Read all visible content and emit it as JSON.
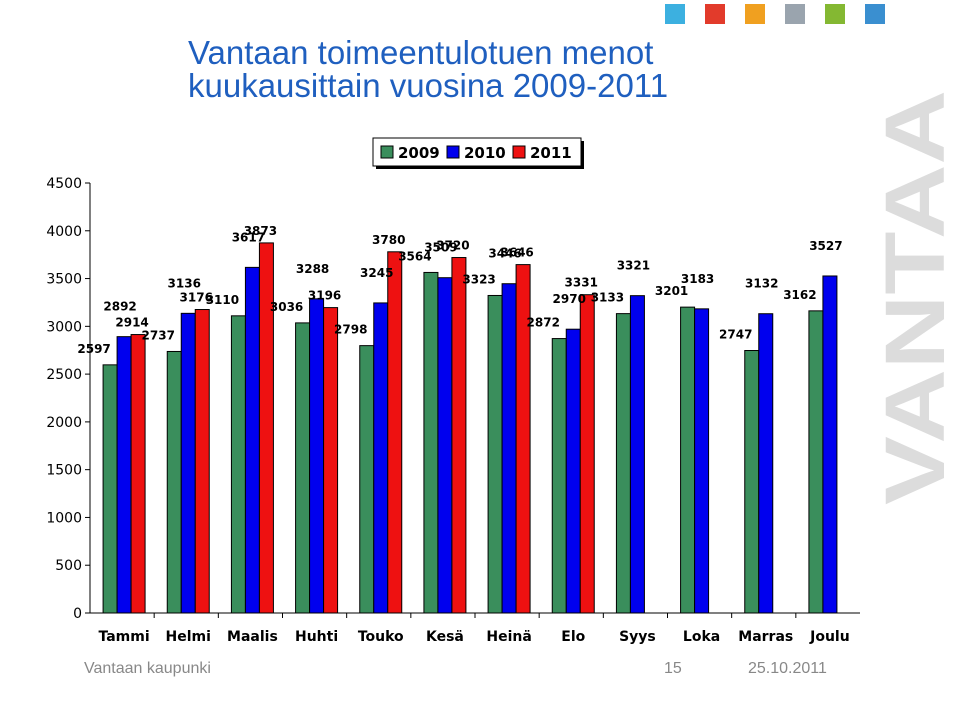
{
  "slide": {
    "title_line1": "Vantaan toimeentulotuen menot",
    "title_line2": "kuukausittain vuosina 2009-2011",
    "footer_org": "Vantaan kaupunki",
    "footer_page": "15",
    "footer_date": "25.10.2011",
    "logo_text": "VANTAA",
    "corner_squares": [
      "#3cb0e0",
      "#e23b2b",
      "#f0a020",
      "#9aa4ae",
      "#84b832",
      "#3a8fd0"
    ]
  },
  "chart_data": {
    "type": "bar",
    "categories": [
      "Tammi",
      "Helmi",
      "Maalis",
      "Huhti",
      "Touko",
      "Kesä",
      "Heinä",
      "Elo",
      "Syys",
      "Loka",
      "Marras",
      "Joulu"
    ],
    "series": [
      {
        "name": "2009",
        "color": "#3a8e5c",
        "values": [
          2597,
          2737,
          3110,
          3036,
          2798,
          3564,
          3323,
          2872,
          3133,
          3201,
          2747,
          3162
        ]
      },
      {
        "name": "2010",
        "color": "#0000ee",
        "values": [
          2892,
          3136,
          3617,
          3288,
          3245,
          3509,
          3446,
          2970,
          3321,
          3183,
          3132,
          3527
        ]
      },
      {
        "name": "2011",
        "color": "#ee1111",
        "values": [
          2914,
          3176,
          3873,
          3196,
          3780,
          3720,
          3646,
          3331,
          null,
          null,
          null,
          null
        ]
      }
    ],
    "y_ticks": [
      "0",
      "500",
      "1000",
      "1500",
      "2000",
      "2500",
      "3000",
      "3500",
      "4000",
      "4500"
    ],
    "ylim": [
      0,
      4500
    ],
    "grid": false,
    "legend_position": "top-center"
  }
}
